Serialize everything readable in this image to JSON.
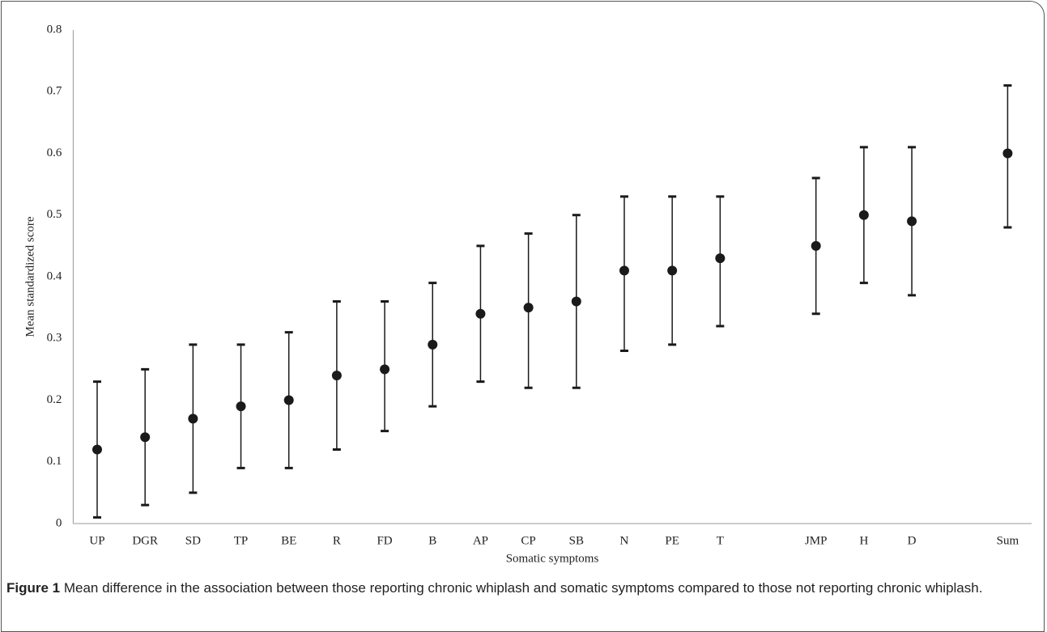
{
  "chart_data": {
    "type": "errorbar",
    "ylabel": "Mean standardized score",
    "xlabel": "Somatic symptoms",
    "categories": [
      "UP",
      "DGR",
      "SD",
      "TP",
      "BE",
      "R",
      "FD",
      "B",
      "AP",
      "CP",
      "SB",
      "N",
      "PE",
      "T",
      null,
      "JMP",
      "H",
      "D",
      null,
      "Sum"
    ],
    "values": [
      0.12,
      0.14,
      0.17,
      0.19,
      0.2,
      0.24,
      0.25,
      0.29,
      0.34,
      0.35,
      0.36,
      0.41,
      0.41,
      0.43,
      null,
      0.45,
      0.5,
      0.49,
      null,
      0.6
    ],
    "lower": [
      0.01,
      0.03,
      0.05,
      0.09,
      0.09,
      0.12,
      0.15,
      0.19,
      0.23,
      0.22,
      0.22,
      0.28,
      0.29,
      0.32,
      null,
      0.34,
      0.39,
      0.37,
      null,
      0.48
    ],
    "upper": [
      0.23,
      0.25,
      0.29,
      0.29,
      0.31,
      0.36,
      0.36,
      0.39,
      0.45,
      0.47,
      0.5,
      0.53,
      0.53,
      0.53,
      null,
      0.56,
      0.61,
      0.61,
      null,
      0.71
    ],
    "color": "#1a1a1a",
    "ylim": [
      0,
      0.8
    ],
    "yticks": [
      0,
      0.1,
      0.2,
      0.3,
      0.4,
      0.5,
      0.6,
      0.7,
      0.8
    ]
  },
  "caption": {
    "label": "Figure 1",
    "text": "Mean difference in the association between those reporting chronic whiplash and somatic symptoms compared to those not reporting chronic whiplash."
  }
}
